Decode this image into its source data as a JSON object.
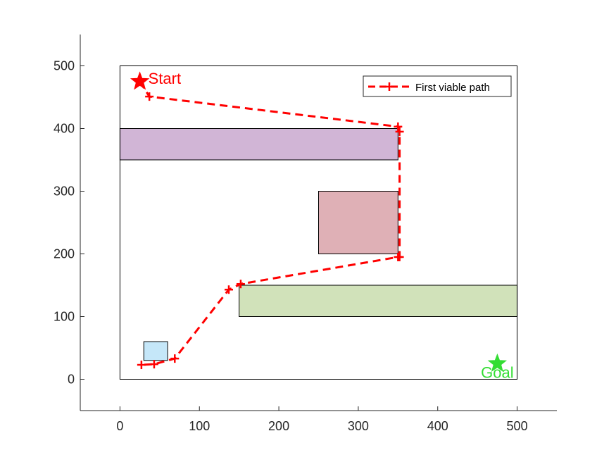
{
  "chart_data": {
    "type": "scatter",
    "title": "",
    "xlabel": "",
    "ylabel": "",
    "xlim": [
      -50,
      550
    ],
    "ylim": [
      -50,
      550
    ],
    "xticks": [
      0,
      100,
      200,
      300,
      400,
      500
    ],
    "yticks": [
      0,
      100,
      200,
      300,
      400,
      500
    ],
    "tick_labels_x": [
      "0",
      "100",
      "200",
      "300",
      "400",
      "500"
    ],
    "tick_labels_y": [
      "0",
      "100",
      "200",
      "300",
      "400",
      "500"
    ],
    "grid": false,
    "boundary": {
      "x": [
        0,
        500
      ],
      "y": [
        0,
        500
      ],
      "color": "#000000"
    },
    "obstacles": [
      {
        "x": [
          0,
          350
        ],
        "y": [
          350,
          400
        ],
        "color": "#D1B5D6"
      },
      {
        "x": [
          250,
          350
        ],
        "y": [
          200,
          300
        ],
        "color": "#DFB0B6"
      },
      {
        "x": [
          150,
          500
        ],
        "y": [
          100,
          150
        ],
        "color": "#D1E2BA"
      },
      {
        "x": [
          30,
          60
        ],
        "y": [
          30,
          60
        ],
        "color": "#C5E7F9"
      }
    ],
    "series": [
      {
        "name": "First viable path",
        "color": "#FF0000",
        "style": "dashed-plus",
        "x": [
          25,
          37,
          350,
          352,
          352,
          350,
          152,
          137,
          69,
          43,
          27
        ],
        "y": [
          475,
          451,
          403,
          395,
          195,
          195,
          152,
          143,
          33,
          24,
          23
        ]
      }
    ],
    "start": {
      "x": 25,
      "y": 475,
      "label": "Start",
      "color": "#FF0000"
    },
    "goal": {
      "x": 475,
      "y": 25,
      "label": "Goal",
      "color": "#33DD33"
    },
    "legend": {
      "position": "top-right",
      "entries": [
        "First viable path"
      ]
    }
  }
}
